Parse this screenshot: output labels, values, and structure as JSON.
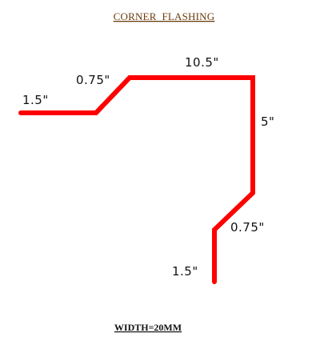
{
  "title": "CORNER  FLASHING",
  "footer": "WIDTH=20MM",
  "colors": {
    "title": "#6b3b0b",
    "profile": "#ff0000",
    "text": "#111111"
  },
  "segments": [
    {
      "id": "seg-1",
      "label": "1.5\""
    },
    {
      "id": "seg-2",
      "label": "0.75\""
    },
    {
      "id": "seg-3",
      "label": "10.5\""
    },
    {
      "id": "seg-4",
      "label": "5\""
    },
    {
      "id": "seg-5",
      "label": "0.75\""
    },
    {
      "id": "seg-6",
      "label": "1.5\""
    }
  ]
}
